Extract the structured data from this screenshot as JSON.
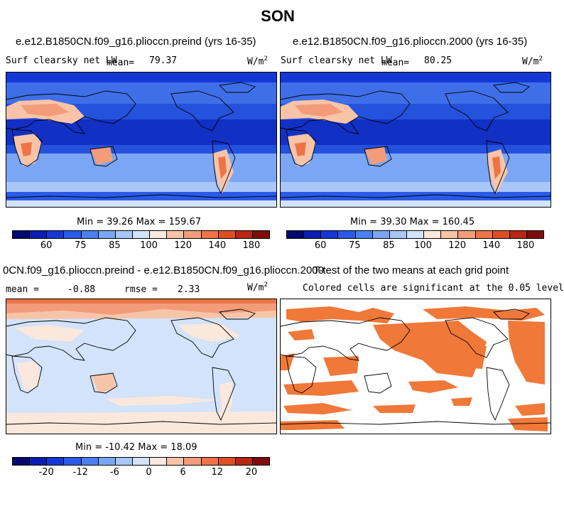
{
  "figure": {
    "title": "SON"
  },
  "panels": {
    "top_left": {
      "title": "e.e12.B1850CN.f09_g16.plioccn.preind (yrs 16-35)",
      "variable": "Surf clearsky net LW",
      "mean_label": "mean=",
      "mean_value": "79.37",
      "units_base": "W/m",
      "units_exp": "2",
      "minmax": "Min =  39.26 Max = 159.67",
      "colorbar": {
        "colors": [
          "#020a6e",
          "#0a1fb0",
          "#1438d6",
          "#2a5ae8",
          "#4a80f0",
          "#7aa6f5",
          "#a9c6f8",
          "#d2e3fb",
          "#fbe8dc",
          "#f8c4a8",
          "#f39c7a",
          "#ee7448",
          "#e04e26",
          "#b82614",
          "#7e0c0a"
        ],
        "tick_labels": [
          "60",
          "75",
          "85",
          "100",
          "120",
          "140",
          "180"
        ]
      }
    },
    "top_right": {
      "title": "e.e12.B1850CN.f09_g16.plioccn.2000 (yrs 16-35)",
      "variable": "Surf clearsky net LW",
      "mean_label": "mean=",
      "mean_value": "80.25",
      "units_base": "W/m",
      "units_exp": "2",
      "minmax": "Min =  39.30 Max = 160.45",
      "colorbar": {
        "colors": [
          "#020a6e",
          "#0a1fb0",
          "#1438d6",
          "#2a5ae8",
          "#4a80f0",
          "#7aa6f5",
          "#a9c6f8",
          "#d2e3fb",
          "#fbe8dc",
          "#f8c4a8",
          "#f39c7a",
          "#ee7448",
          "#e04e26",
          "#b82614",
          "#7e0c0a"
        ],
        "tick_labels": [
          "60",
          "75",
          "85",
          "100",
          "120",
          "140",
          "180"
        ]
      }
    },
    "bottom_left": {
      "title": "0CN.f09_g16.plioccn.preind - e.e12.B1850CN.f09_g16.plioccn.2000",
      "mean_label": "mean =",
      "mean_value": "-0.88",
      "rmse_label": "rmse =",
      "rmse_value": "2.33",
      "units_base": "W/m",
      "units_exp": "2",
      "minmax": "Min = -10.42 Max =  18.09",
      "colorbar": {
        "colors": [
          "#020a6e",
          "#0a1fb0",
          "#1438d6",
          "#2a5ae8",
          "#4a80f0",
          "#7aa6f5",
          "#a9c6f8",
          "#d2e3fb",
          "#fbe8dc",
          "#f8c4a8",
          "#f39c7a",
          "#ee7448",
          "#e04e26",
          "#b82614",
          "#7e0c0a"
        ],
        "tick_labels": [
          "-20",
          "-12",
          "-6",
          "0",
          "6",
          "12",
          "20"
        ]
      }
    },
    "bottom_right": {
      "title": "T-test of the two means at each grid point",
      "subtitle": "Colored cells are significant at the 0.05 level",
      "significance_color": "#f07838"
    }
  }
}
